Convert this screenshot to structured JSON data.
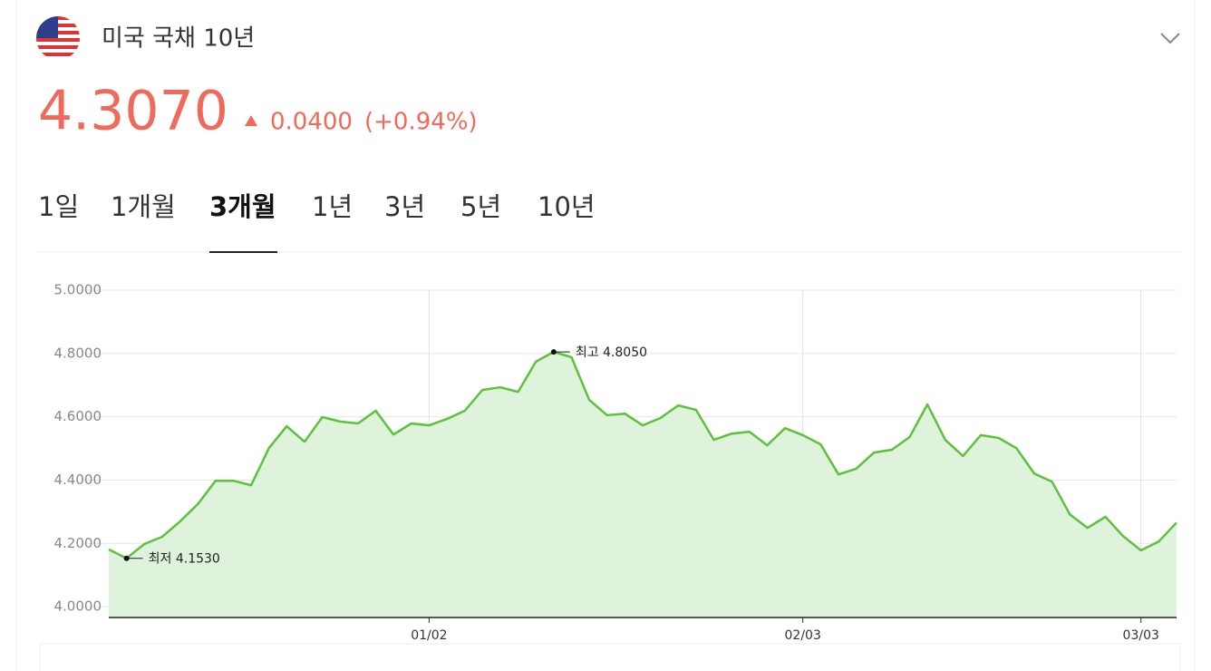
{
  "header": {
    "title": "미국 국채 10년",
    "price": "4.3070",
    "change": "0.0400",
    "change_percent": "(+0.94%)"
  },
  "tabs": [
    "1일",
    "1개월",
    "3개월",
    "1년",
    "3년",
    "5년",
    "10년"
  ],
  "chart_data": {
    "type": "line",
    "categories": [
      null,
      null,
      null,
      null,
      null,
      null,
      null,
      null,
      null,
      null,
      null,
      null,
      null,
      null,
      null,
      null,
      null,
      null,
      "01/02",
      null,
      null,
      null,
      null,
      null,
      null,
      null,
      null,
      null,
      null,
      null,
      null,
      null,
      null,
      null,
      null,
      null,
      null,
      null,
      null,
      "02/03",
      null,
      null,
      null,
      null,
      null,
      null,
      null,
      null,
      null,
      null,
      null,
      null,
      null,
      null,
      null,
      null,
      null,
      null,
      "03/03",
      null,
      null
    ],
    "values": [
      4.181,
      4.153,
      4.198,
      4.221,
      4.269,
      4.324,
      4.398,
      4.398,
      4.384,
      4.501,
      4.57,
      4.521,
      4.599,
      4.585,
      4.579,
      4.619,
      4.544,
      4.579,
      4.573,
      4.593,
      4.619,
      4.685,
      4.693,
      4.679,
      4.774,
      4.805,
      4.788,
      4.653,
      4.605,
      4.61,
      4.573,
      4.596,
      4.636,
      4.622,
      4.527,
      4.547,
      4.553,
      4.51,
      4.564,
      4.542,
      4.513,
      4.418,
      4.436,
      4.487,
      4.496,
      4.536,
      4.639,
      4.527,
      4.476,
      4.542,
      4.533,
      4.501,
      4.421,
      4.395,
      4.292,
      4.249,
      4.284,
      4.223,
      4.178,
      4.206,
      4.266
    ],
    "color": "#5cc23a",
    "fill_color": "#dff3dc",
    "ylim": [
      3.966,
      5
    ],
    "yticks": [
      {
        "value": 4,
        "label": "4.0000"
      },
      {
        "value": 4.2,
        "label": "4.2000"
      },
      {
        "value": 4.4,
        "label": "4.4000"
      },
      {
        "value": 4.6,
        "label": "4.6000"
      },
      {
        "value": 4.8,
        "label": "4.8000"
      },
      {
        "value": 5,
        "label": "5.0000"
      }
    ],
    "grid": true,
    "min_label": "최저 4.1530",
    "max_label": "최고 4.8050"
  }
}
